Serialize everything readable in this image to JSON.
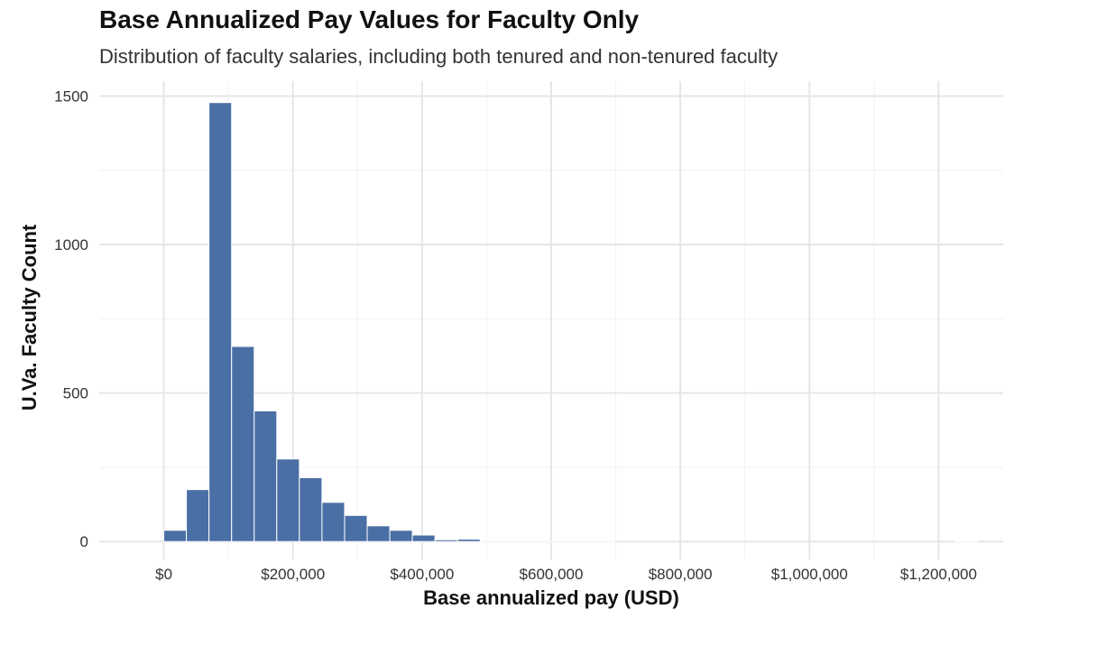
{
  "chart_data": {
    "type": "bar",
    "title": "Base Annualized Pay Values for Faculty Only",
    "subtitle": "Distribution of faculty salaries, including both tenured and non-tenured faculty",
    "xlabel": "Base annualized pay (USD)",
    "ylabel": "U.Va. Faculty Count",
    "xlim": [
      -100000,
      1300000
    ],
    "ylim": [
      -60,
      1550
    ],
    "x_ticks": [
      0,
      200000,
      400000,
      600000,
      800000,
      1000000,
      1200000
    ],
    "x_tick_labels": [
      "$0",
      "$200,000",
      "$400,000",
      "$600,000",
      "$800,000",
      "$1,000,000",
      "$1,200,000"
    ],
    "y_ticks": [
      0,
      500,
      1000,
      1500
    ],
    "y_tick_labels": [
      "0",
      "500",
      "1000",
      "1500"
    ],
    "grid": true,
    "legend": "none",
    "bar_color": "#4a6fa5",
    "bin_width": 35000,
    "bins": [
      {
        "x_start": 0,
        "value": 38
      },
      {
        "x_start": 35000,
        "value": 175
      },
      {
        "x_start": 70000,
        "value": 1478
      },
      {
        "x_start": 105000,
        "value": 657
      },
      {
        "x_start": 140000,
        "value": 440
      },
      {
        "x_start": 175000,
        "value": 278
      },
      {
        "x_start": 210000,
        "value": 215
      },
      {
        "x_start": 245000,
        "value": 132
      },
      {
        "x_start": 280000,
        "value": 88
      },
      {
        "x_start": 315000,
        "value": 53
      },
      {
        "x_start": 350000,
        "value": 38
      },
      {
        "x_start": 385000,
        "value": 22
      },
      {
        "x_start": 420000,
        "value": 6
      },
      {
        "x_start": 455000,
        "value": 8
      },
      {
        "x_start": 490000,
        "value": 1
      },
      {
        "x_start": 525000,
        "value": 1
      },
      {
        "x_start": 560000,
        "value": 1
      },
      {
        "x_start": 595000,
        "value": 1
      },
      {
        "x_start": 630000,
        "value": 1
      },
      {
        "x_start": 665000,
        "value": 1
      },
      {
        "x_start": 1225000,
        "value": 2
      }
    ]
  }
}
